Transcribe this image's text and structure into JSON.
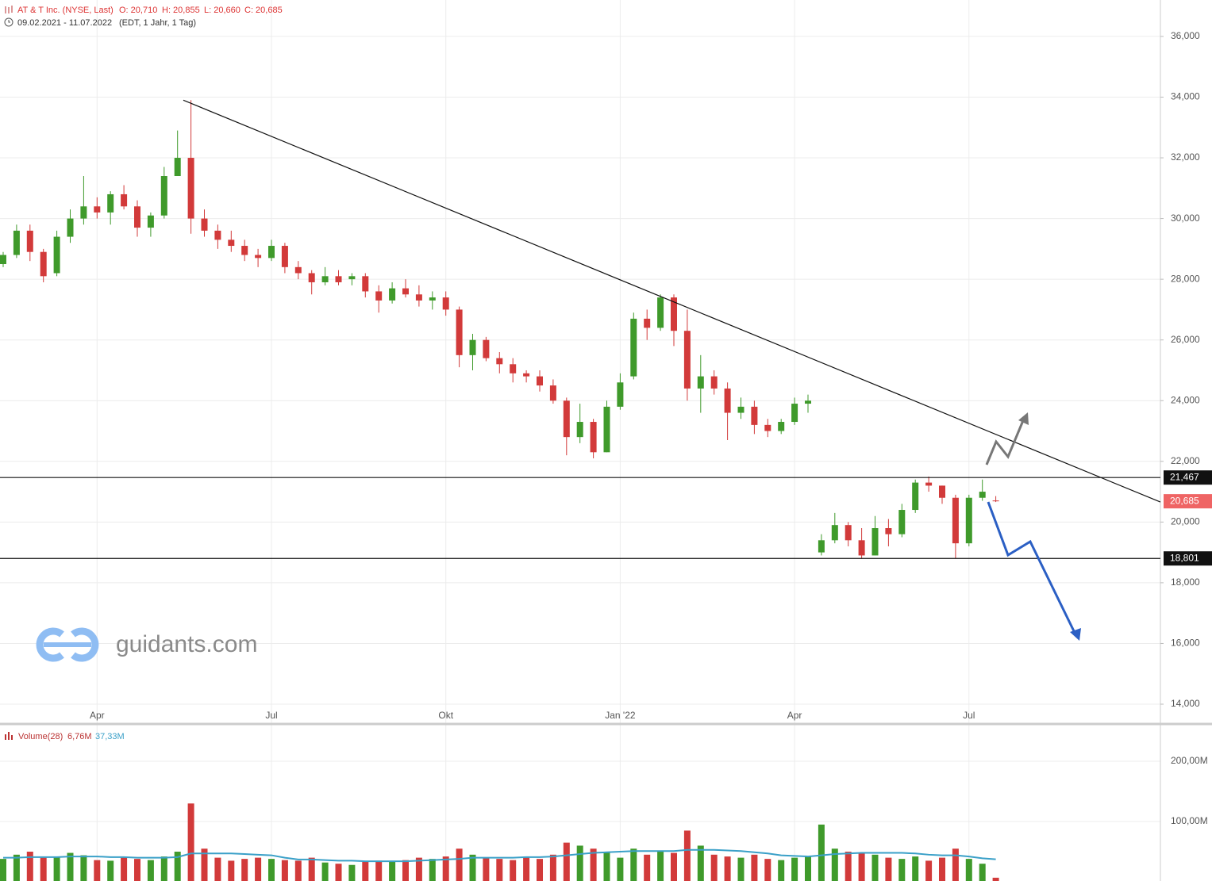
{
  "chart_data": [
    {
      "type": "candlestick",
      "title": "AT & T Inc. (NYSE, Last)",
      "ohlc_legend": [
        "O: 20,710",
        "H: 20,855",
        "L: 20,660",
        "C: 20,685"
      ],
      "date_range": "09.02.2021 - 11.07.2022",
      "subtitle": "(EDT, 1 Jahr, 1 Tag)",
      "categories": [
        null,
        null,
        null,
        null,
        null,
        null,
        null,
        "Apr",
        null,
        null,
        null,
        null,
        null,
        null,
        null,
        null,
        null,
        null,
        null,
        null,
        "Jul",
        null,
        null,
        null,
        null,
        null,
        null,
        null,
        null,
        null,
        null,
        null,
        null,
        "Okt",
        null,
        null,
        null,
        null,
        null,
        null,
        null,
        null,
        null,
        null,
        null,
        null,
        "Jan '22",
        null,
        null,
        null,
        null,
        null,
        null,
        null,
        null,
        null,
        null,
        null,
        null,
        "Apr",
        null,
        null,
        null,
        null,
        null,
        null,
        null,
        null,
        null,
        null,
        null,
        null,
        "Jul",
        null,
        null
      ],
      "open": [
        28.5,
        28.8,
        29.6,
        28.9,
        28.2,
        29.4,
        30.0,
        30.4,
        30.2,
        30.8,
        30.4,
        29.7,
        30.1,
        31.4,
        32.0,
        30.0,
        29.6,
        29.3,
        29.1,
        28.8,
        28.7,
        29.1,
        28.4,
        28.2,
        27.9,
        28.1,
        28.0,
        28.1,
        27.6,
        27.3,
        27.7,
        27.5,
        27.3,
        27.4,
        27.0,
        25.5,
        26.0,
        25.4,
        25.2,
        24.9,
        24.8,
        24.5,
        24.0,
        22.8,
        23.3,
        22.3,
        23.8,
        24.8,
        26.7,
        26.4,
        27.4,
        26.3,
        24.4,
        24.8,
        24.4,
        23.6,
        23.8,
        23.2,
        23.0,
        23.3,
        23.9,
        19.0,
        19.4,
        19.9,
        19.4,
        18.9,
        19.8,
        19.6,
        20.4,
        21.3,
        21.2,
        20.8,
        19.3,
        20.8,
        20.71
      ],
      "high": [
        28.9,
        29.8,
        29.8,
        29.0,
        29.6,
        30.3,
        31.4,
        30.7,
        30.9,
        31.1,
        30.6,
        30.2,
        31.7,
        32.9,
        33.9,
        30.3,
        29.8,
        29.6,
        29.3,
        29.0,
        29.3,
        29.2,
        28.6,
        28.3,
        28.4,
        28.3,
        28.2,
        28.2,
        27.8,
        27.9,
        28.0,
        27.8,
        27.6,
        27.6,
        27.1,
        26.2,
        26.1,
        25.6,
        25.4,
        25.0,
        25.0,
        24.7,
        24.1,
        23.9,
        23.4,
        24.0,
        24.9,
        26.9,
        27.0,
        27.5,
        27.5,
        27.0,
        25.5,
        25.0,
        24.6,
        24.1,
        24.0,
        23.4,
        23.4,
        24.1,
        24.2,
        19.6,
        20.3,
        20.0,
        19.8,
        20.2,
        20.1,
        20.6,
        21.4,
        21.5,
        21.2,
        20.9,
        20.9,
        21.4,
        20.855
      ],
      "low": [
        28.4,
        28.7,
        28.6,
        27.9,
        28.1,
        29.2,
        29.8,
        30.0,
        29.8,
        30.3,
        29.4,
        29.4,
        30.0,
        31.4,
        29.5,
        29.4,
        29.0,
        28.9,
        28.6,
        28.4,
        28.6,
        28.2,
        28.0,
        27.5,
        27.8,
        27.8,
        27.8,
        27.4,
        26.9,
        27.2,
        27.4,
        27.1,
        27.0,
        26.8,
        25.1,
        25.0,
        25.3,
        24.9,
        24.6,
        24.6,
        24.3,
        23.9,
        22.2,
        22.6,
        22.1,
        22.3,
        23.7,
        24.7,
        26.0,
        26.3,
        25.8,
        24.0,
        23.6,
        24.2,
        22.7,
        23.4,
        22.9,
        22.8,
        22.9,
        23.2,
        23.6,
        18.9,
        19.3,
        19.2,
        18.8,
        18.9,
        19.2,
        19.5,
        20.3,
        21.0,
        20.6,
        18.8,
        19.2,
        20.7,
        20.66
      ],
      "close": [
        28.8,
        29.6,
        28.9,
        28.1,
        29.4,
        30.0,
        30.4,
        30.2,
        30.8,
        30.4,
        29.7,
        30.1,
        31.4,
        32.0,
        30.0,
        29.6,
        29.3,
        29.1,
        28.8,
        28.7,
        29.1,
        28.4,
        28.2,
        27.9,
        28.1,
        27.9,
        28.1,
        27.6,
        27.3,
        27.7,
        27.5,
        27.3,
        27.4,
        27.0,
        25.5,
        26.0,
        25.4,
        25.2,
        24.9,
        24.8,
        24.5,
        24.0,
        22.8,
        23.3,
        22.3,
        23.8,
        24.6,
        26.7,
        26.4,
        27.4,
        26.3,
        24.4,
        24.8,
        24.4,
        23.6,
        23.8,
        23.2,
        23.0,
        23.3,
        23.9,
        24.0,
        19.4,
        19.9,
        19.4,
        18.9,
        19.8,
        19.6,
        20.4,
        21.3,
        21.2,
        20.8,
        19.3,
        20.8,
        21.0,
        20.685
      ],
      "up_color": "#3f9a2b",
      "down_color": "#d23a3a",
      "ylim": [
        14,
        37.2
      ],
      "yticks": [
        {
          "value": 14,
          "label": "14,000"
        },
        {
          "value": 16,
          "label": "16,000"
        },
        {
          "value": 18,
          "label": "18,000"
        },
        {
          "value": 20,
          "label": "20,000"
        },
        {
          "value": 22,
          "label": "22,000"
        },
        {
          "value": 24,
          "label": "24,000"
        },
        {
          "value": 26,
          "label": "26,000"
        },
        {
          "value": 28,
          "label": "28,000"
        },
        {
          "value": 30,
          "label": "30,000"
        },
        {
          "value": 32,
          "label": "32,000"
        },
        {
          "value": 34,
          "label": "34,000"
        },
        {
          "value": 36,
          "label": "36,000"
        }
      ],
      "levels": [
        {
          "value": 21.467,
          "label": "21,467"
        },
        {
          "value": 18.801,
          "label": "18,801"
        }
      ],
      "last_price": {
        "value": 20.685,
        "label": "20,685"
      },
      "trendline": {
        "x": [
          13.43,
          86.27
        ],
        "y": [
          33.9,
          20.66
        ]
      },
      "grid": true,
      "watermark": "guidants.com"
    },
    {
      "type": "bar",
      "title": "Volume(28)",
      "legend_values": [
        "6,76M",
        "37,33M"
      ],
      "values": [
        38,
        45,
        50,
        40,
        42,
        48,
        44,
        36,
        35,
        40,
        38,
        36,
        42,
        50,
        130,
        55,
        40,
        35,
        38,
        40,
        38,
        36,
        35,
        40,
        32,
        30,
        28,
        33,
        35,
        34,
        36,
        40,
        38,
        42,
        55,
        45,
        40,
        38,
        36,
        40,
        38,
        45,
        65,
        60,
        55,
        50,
        40,
        55,
        45,
        50,
        48,
        85,
        60,
        45,
        42,
        40,
        45,
        38,
        36,
        40,
        42,
        95,
        55,
        50,
        48,
        45,
        40,
        38,
        42,
        35,
        40,
        55,
        38,
        30,
        6.76
      ],
      "ma_values": [
        40,
        40,
        41,
        41,
        41,
        42,
        42,
        42,
        41,
        41,
        40,
        40,
        40,
        41,
        47,
        47,
        47,
        47,
        46,
        45,
        44,
        40,
        37,
        37,
        36,
        35,
        35,
        34,
        34,
        34,
        34,
        35,
        36,
        37,
        38,
        40,
        40,
        40,
        40,
        41,
        41,
        42,
        44,
        46,
        48,
        49,
        50,
        51,
        51,
        51,
        51,
        53,
        53,
        53,
        52,
        51,
        49,
        47,
        44,
        43,
        42,
        44,
        46,
        47,
        48,
        48,
        48,
        48,
        47,
        45,
        44,
        44,
        42,
        39,
        37.33
      ],
      "ma_color": "#3aa0c8",
      "ylim": [
        0,
        258
      ],
      "yticks": [
        {
          "value": 100,
          "label": "100,00M"
        },
        {
          "value": 200,
          "label": "200,00M"
        }
      ],
      "grid": true
    }
  ]
}
